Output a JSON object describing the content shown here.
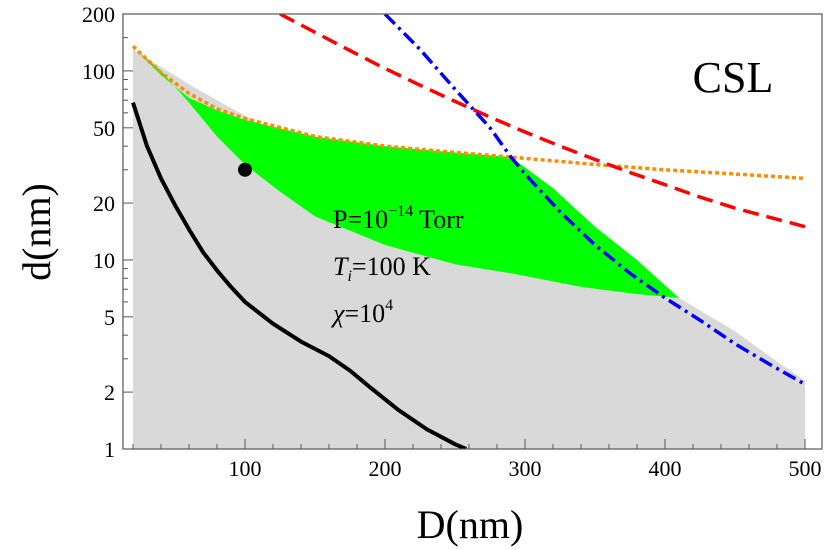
{
  "chart_data": {
    "type": "area",
    "xlabel": "D(nm)",
    "ylabel": "d(nm)",
    "xlim": [
      15,
      520
    ],
    "ylim": [
      1,
      200
    ],
    "yscale": "log",
    "xticks": [
      100,
      200,
      300,
      400,
      500
    ],
    "yticks": [
      1,
      2,
      5,
      10,
      20,
      50,
      100,
      200
    ],
    "grid": false,
    "panel_label": "CSL",
    "annotations": {
      "pressure": {
        "prefix": "P=10",
        "exponent": "−14",
        "suffix": " Torr"
      },
      "temperature": {
        "symbol": "T",
        "subscript": "i",
        "rest": "=100 K"
      },
      "chi": {
        "symbol": "χ",
        "base": "=10",
        "exponent": "4"
      }
    },
    "marker": {
      "x": 100,
      "y": 30,
      "color": "#000000"
    },
    "regions": [
      {
        "name": "gray-region",
        "color": "#d9d9d9",
        "points": [
          [
            20,
            130
          ],
          [
            40,
            105
          ],
          [
            60,
            85
          ],
          [
            80,
            70
          ],
          [
            100,
            58
          ],
          [
            125,
            46
          ],
          [
            150,
            36
          ],
          [
            175,
            28
          ],
          [
            200,
            21
          ],
          [
            225,
            16
          ],
          [
            250,
            12.5
          ],
          [
            290,
            10
          ],
          [
            310,
            8.5
          ],
          [
            340,
            7.2
          ],
          [
            380,
            6.6
          ],
          [
            410,
            6.3
          ],
          [
            450,
            4.2
          ],
          [
            480,
            2.9
          ],
          [
            500,
            2.3
          ],
          [
            500,
            1
          ],
          [
            20,
            1
          ],
          [
            20,
            68
          ]
        ]
      },
      {
        "name": "green-region",
        "color": "#00ff00",
        "points": [
          [
            22,
            130
          ],
          [
            40,
            95
          ],
          [
            60,
            72
          ],
          [
            80,
            62
          ],
          [
            100,
            55
          ],
          [
            150,
            45
          ],
          [
            200,
            40
          ],
          [
            250,
            37
          ],
          [
            290,
            35
          ],
          [
            320,
            24
          ],
          [
            350,
            15
          ],
          [
            380,
            10
          ],
          [
            410,
            6.3
          ],
          [
            380,
            6.6
          ],
          [
            340,
            7.2
          ],
          [
            290,
            8.5
          ],
          [
            250,
            9.5
          ],
          [
            200,
            12
          ],
          [
            150,
            17
          ],
          [
            125,
            23
          ],
          [
            100,
            32
          ],
          [
            80,
            45
          ],
          [
            60,
            68
          ],
          [
            40,
            100
          ]
        ]
      }
    ],
    "series": [
      {
        "name": "black-solid",
        "color": "#000000",
        "dash": "solid",
        "x": [
          20,
          30,
          40,
          50,
          60,
          70,
          80,
          90,
          100,
          120,
          140,
          160,
          175,
          190,
          210,
          230,
          250,
          258
        ],
        "y": [
          68,
          40,
          27,
          19.5,
          14.5,
          11,
          8.8,
          7.2,
          6,
          4.6,
          3.7,
          3.1,
          2.6,
          2.1,
          1.6,
          1.27,
          1.06,
          1.0
        ]
      },
      {
        "name": "orange-dotted",
        "color": "#ff8c00",
        "dash": "dotted",
        "x": [
          20,
          40,
          60,
          80,
          100,
          150,
          200,
          250,
          290,
          350,
          400,
          450,
          500
        ],
        "y": [
          135,
          98,
          76,
          63,
          56,
          45,
          40,
          37,
          35,
          32,
          30,
          28.5,
          27
        ]
      },
      {
        "name": "red-dashed",
        "color": "#ff0000",
        "dash": "dashed",
        "x": [
          125,
          150,
          175,
          200,
          225,
          250,
          275,
          300,
          325,
          350,
          375,
          400,
          425,
          450,
          475,
          500
        ],
        "y": [
          200,
          160,
          128,
          103,
          84,
          69,
          57,
          47.5,
          40,
          34,
          29,
          25,
          21.5,
          18.8,
          16.8,
          15
        ]
      },
      {
        "name": "blue-dashdot",
        "color": "#0000ff",
        "dash": "dashdot",
        "x": [
          200,
          225,
          250,
          275,
          290,
          300,
          325,
          350,
          375,
          400,
          425,
          450,
          475,
          500
        ],
        "y": [
          200,
          130,
          80,
          50,
          35,
          28.5,
          18,
          12,
          8.5,
          6.3,
          4.8,
          3.6,
          2.8,
          2.2
        ]
      }
    ]
  }
}
